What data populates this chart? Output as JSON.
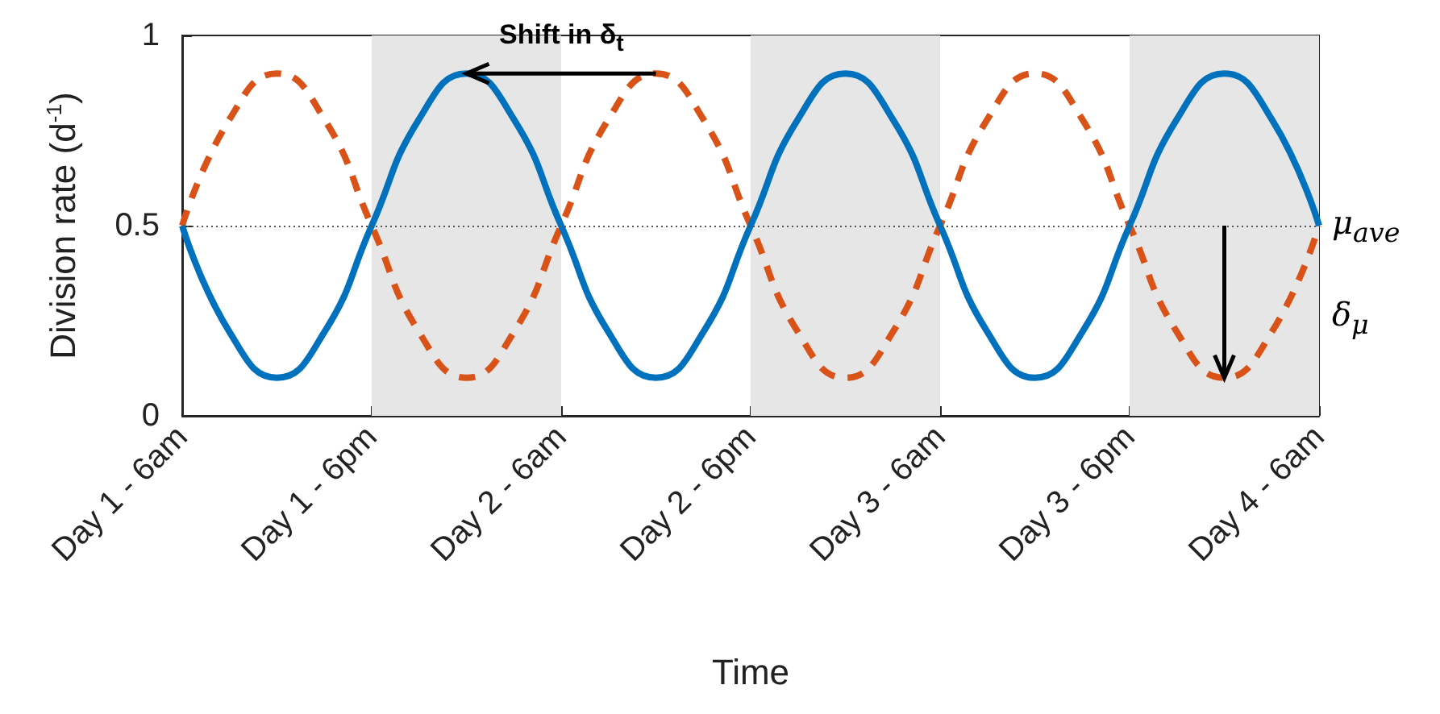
{
  "chart_data": {
    "type": "line",
    "xlabel": "Time",
    "ylabel": "Division rate (d$^{-1}$)",
    "categories": [
      "Day 1 - 6am",
      null,
      null,
      null,
      "Day 1 - 6pm",
      null,
      null,
      null,
      "Day 2 - 6am",
      null,
      null,
      null,
      "Day 2 - 6pm",
      null,
      null,
      null,
      "Day 3 - 6am",
      null,
      null,
      null,
      "Day 3 - 6pm",
      null,
      null,
      null,
      "Day 4 - 6am"
    ],
    "series": [
      {
        "color": "#d95319",
        "line_style": "dashed",
        "values": [
          0.5,
          0.78,
          0.9,
          0.78,
          0.5,
          0.22,
          0.1,
          0.22,
          0.5,
          0.78,
          0.9,
          0.78,
          0.5,
          0.22,
          0.1,
          0.22,
          0.5,
          0.78,
          0.9,
          0.78,
          0.5,
          0.22,
          0.1,
          0.22,
          0.5
        ]
      },
      {
        "color": "#0072bd",
        "line_style": "solid",
        "values": [
          0.5,
          0.22,
          0.1,
          0.22,
          0.5,
          0.78,
          0.9,
          0.78,
          0.5,
          0.22,
          0.1,
          0.22,
          0.5,
          0.78,
          0.9,
          0.78,
          0.5,
          0.22,
          0.1,
          0.22,
          0.5,
          0.78,
          0.9,
          0.78,
          0.5
        ]
      }
    ],
    "ylim": [
      0,
      1
    ],
    "yticks": [
      0,
      0.5,
      1
    ],
    "bands": [
      {
        "axis": "x",
        "from": "Day 1 - 6pm",
        "to": "Day 2 - 6am",
        "color": "#e6e6e6"
      },
      {
        "axis": "x",
        "from": "Day 2 - 6pm",
        "to": "Day 3 - 6am",
        "color": "#e6e6e6"
      },
      {
        "axis": "x",
        "from": "Day 3 - 6pm",
        "to": "Day 4 - 6am",
        "color": "#e6e6e6"
      }
    ],
    "ref_lines": [
      {
        "axis": "y",
        "value": 0.5,
        "label": "μ$_{ave}$",
        "color": "#555555",
        "line_style": "dotted"
      }
    ],
    "annotations": [
      "Shift in δ$_{t}$",
      "δ$_{μ}$"
    ],
    "marker": "none",
    "grid": false
  }
}
